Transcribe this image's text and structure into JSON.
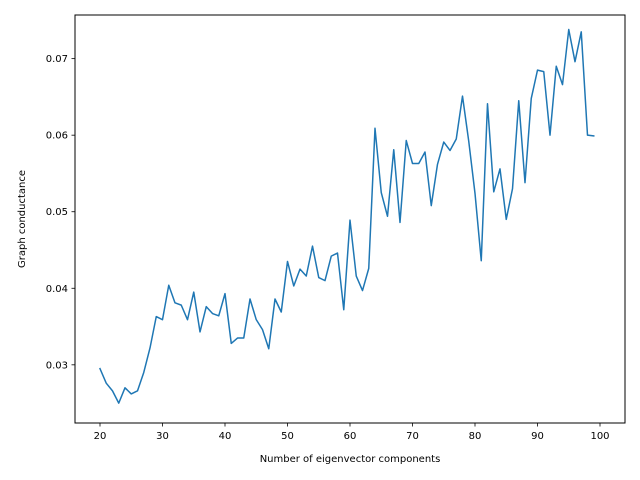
{
  "chart_data": {
    "type": "line",
    "title": "",
    "xlabel": "Number of eigenvector components",
    "ylabel": "Graph conductance",
    "xlim": [
      16,
      104
    ],
    "ylim": [
      0.0224,
      0.0757
    ],
    "xticks": [
      20,
      30,
      40,
      50,
      60,
      70,
      80,
      90,
      100
    ],
    "yticks": [
      0.03,
      0.04,
      0.05,
      0.06,
      0.07
    ],
    "ytick_labels": [
      "0.03",
      "0.04",
      "0.05",
      "0.06",
      "0.07"
    ],
    "grid": false,
    "legend": "none",
    "color": "#1f77b4",
    "series": [
      {
        "x": [
          20,
          21,
          22,
          23,
          24,
          25,
          26,
          27,
          28,
          29,
          30,
          31,
          32,
          33,
          34,
          35,
          36,
          37,
          38,
          39,
          40,
          41,
          42,
          43,
          44,
          45,
          46,
          47,
          48,
          49,
          50,
          51,
          52,
          53,
          54,
          55,
          56,
          57,
          58,
          59,
          60,
          61,
          62,
          63,
          64,
          65,
          66,
          67,
          68,
          69,
          70,
          71,
          72,
          73,
          74,
          75,
          76,
          77,
          78,
          79,
          80,
          81,
          82,
          83,
          84,
          85,
          86,
          87,
          88,
          89,
          90,
          91,
          92,
          93,
          94,
          95,
          96,
          97,
          98,
          99
        ],
        "values": [
          0.0295,
          0.0276,
          0.0266,
          0.025,
          0.027,
          0.0262,
          0.0266,
          0.029,
          0.0322,
          0.0363,
          0.0359,
          0.0404,
          0.0381,
          0.0378,
          0.0359,
          0.0395,
          0.0343,
          0.0376,
          0.0367,
          0.0364,
          0.0393,
          0.0328,
          0.0335,
          0.0335,
          0.0386,
          0.0359,
          0.0346,
          0.0321,
          0.0386,
          0.0369,
          0.0435,
          0.0403,
          0.0425,
          0.0416,
          0.0455,
          0.0414,
          0.041,
          0.0442,
          0.0446,
          0.0372,
          0.0489,
          0.0416,
          0.0397,
          0.0426,
          0.0609,
          0.0525,
          0.0494,
          0.0581,
          0.0486,
          0.0593,
          0.0563,
          0.0563,
          0.0578,
          0.0508,
          0.0562,
          0.0591,
          0.058,
          0.0595,
          0.0651,
          0.0592,
          0.0524,
          0.0436,
          0.0641,
          0.0526,
          0.0556,
          0.049,
          0.053,
          0.0645,
          0.0538,
          0.0648,
          0.0685,
          0.0683,
          0.06,
          0.069,
          0.0666,
          0.0738,
          0.0696,
          0.0735,
          0.06,
          0.0599
        ]
      }
    ]
  }
}
